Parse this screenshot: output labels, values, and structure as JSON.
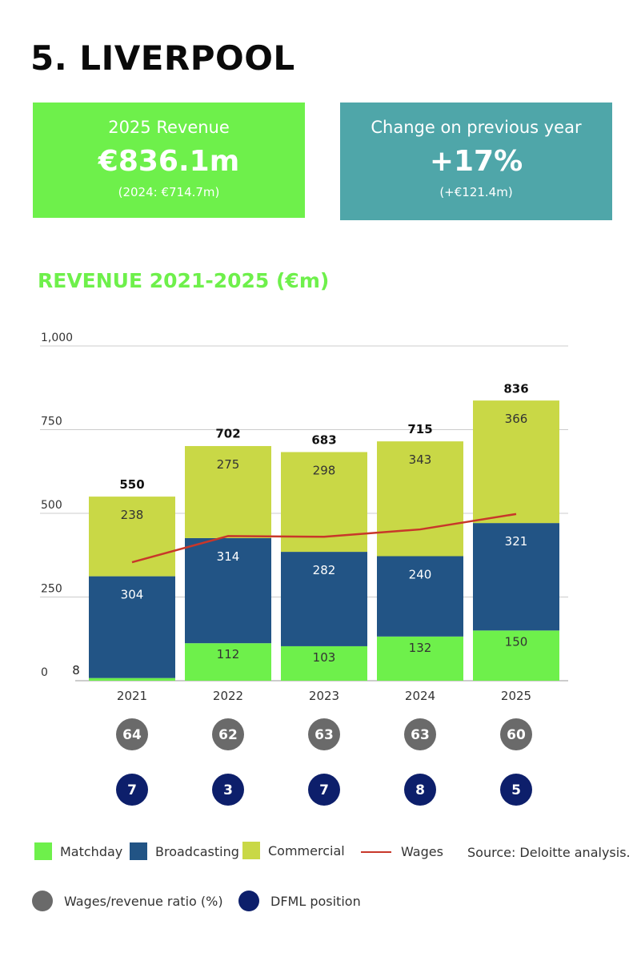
{
  "title": "5. LIVERPOOL",
  "revenue_card": {
    "label": "2025 Revenue",
    "value": "€836.1m",
    "sub": "(2024: €714.7m)"
  },
  "change_card": {
    "label": "Change on previous year",
    "value": "+17%",
    "sub": "(+€121.4m)"
  },
  "chart_title": "REVENUE 2021-2025 (€m)",
  "colors": {
    "matchday": "#6ef04b",
    "broadcasting": "#225485",
    "commercial": "#c9d846",
    "wages": "#c8372a",
    "ratio": "#6a6a6a",
    "position": "#0d1f6b"
  },
  "chart_data": {
    "type": "bar",
    "stacked": true,
    "categories": [
      "2021",
      "2022",
      "2023",
      "2024",
      "2025"
    ],
    "series": [
      {
        "name": "Matchday",
        "values": [
          8,
          112,
          103,
          132,
          150
        ]
      },
      {
        "name": "Broadcasting",
        "values": [
          304,
          314,
          282,
          240,
          321
        ]
      },
      {
        "name": "Commercial",
        "values": [
          238,
          275,
          298,
          343,
          366
        ]
      }
    ],
    "totals": [
      550,
      702,
      683,
      715,
      836
    ],
    "wages": {
      "name": "Wages",
      "type": "line",
      "values": [
        354,
        432,
        430,
        452,
        498
      ]
    },
    "ratio": {
      "name": "Wages/revenue ratio (%)",
      "values": [
        64,
        62,
        63,
        63,
        60
      ]
    },
    "position": {
      "name": "DFML position",
      "values": [
        7,
        3,
        7,
        8,
        5
      ]
    },
    "yticks": [
      0,
      250,
      500,
      750,
      1000
    ],
    "ytick_labels": [
      "0",
      "250",
      "500",
      "750",
      "1,000"
    ],
    "ylim": [
      0,
      1000
    ]
  },
  "legend": {
    "matchday": "Matchday",
    "broadcasting": "Broadcasting",
    "commercial": "Commercial",
    "wages": "Wages",
    "ratio": "Wages/revenue ratio (%)",
    "position": "DFML position"
  },
  "source": "Source: Deloitte analysis."
}
